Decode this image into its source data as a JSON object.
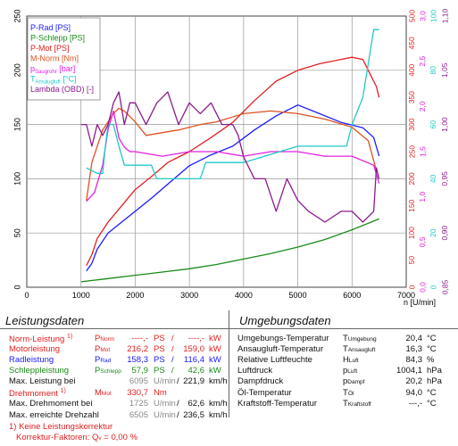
{
  "chart_data": {
    "type": "line",
    "xlabel": "n [U/min]",
    "xlim": [
      0,
      7000
    ],
    "x_ticks": [
      "0",
      "1000",
      "2000",
      "3000",
      "4000",
      "5000",
      "6000",
      "7000"
    ],
    "left_axis": {
      "ylim": [
        0,
        250
      ],
      "ticks": [
        "0",
        "50",
        "100",
        "150",
        "200",
        "250"
      ]
    },
    "right_axes": [
      {
        "color": "#e02020",
        "ticks": [
          "0",
          "50",
          "100",
          "150",
          "200",
          "250",
          "300",
          "350",
          "400",
          "450",
          "500"
        ]
      },
      {
        "color": "#e020e0",
        "ticks": [
          "0,0",
          "0,5",
          "1,0",
          "1,5",
          "2,0",
          "2,5",
          "3,0"
        ]
      },
      {
        "color": "#20c8c8",
        "ticks": [
          "0",
          "20",
          "40",
          "60",
          "80",
          "100"
        ]
      },
      {
        "color": "#8b1a8b",
        "ticks": [
          "0,85",
          "0,90",
          "0,95",
          "1,00",
          "1,05",
          "1,10"
        ]
      }
    ],
    "legend": [
      {
        "label": "P-Rad [PS]",
        "color": "#1a1aff"
      },
      {
        "label": "P-Schlepp [PS]",
        "color": "#1a8a1a"
      },
      {
        "label": "P-Mot [PS]",
        "color": "#e02020"
      },
      {
        "label": "M-Norm [Nm]",
        "color": "#e05020"
      },
      {
        "label": "p",
        "sub": "Saugrohr",
        "suffix": " [bar]",
        "color": "#e020e0"
      },
      {
        "label": "T",
        "sub": "Ansaugluft",
        "suffix": " [°C]",
        "color": "#20c8c8"
      },
      {
        "label": "Lambda (OBD) [-]",
        "color": "#8b1a8b"
      }
    ],
    "series": [
      {
        "name": "P-Rad [PS]",
        "color": "#1a1aff",
        "axis": "left",
        "x": [
          1100,
          1200,
          1300,
          1500,
          1700,
          2000,
          2300,
          2600,
          3000,
          3400,
          3800,
          4200,
          4600,
          5000,
          5400,
          5800,
          6200,
          6400,
          6500
        ],
        "y": [
          15,
          22,
          35,
          50,
          58,
          70,
          82,
          95,
          112,
          122,
          130,
          145,
          158,
          168,
          160,
          152,
          147,
          138,
          121
        ]
      },
      {
        "name": "P-Schlepp [PS]",
        "color": "#1a8a1a",
        "axis": "left",
        "x": [
          1000,
          1500,
          2000,
          2500,
          3000,
          3500,
          4000,
          4500,
          5000,
          5500,
          6000,
          6500
        ],
        "y": [
          5,
          8,
          11,
          14,
          17,
          21,
          26,
          31,
          37,
          44,
          53,
          63
        ]
      },
      {
        "name": "P-Mot [PS]",
        "color": "#e02020",
        "axis": "left",
        "x": [
          1100,
          1200,
          1300,
          1500,
          1700,
          2000,
          2300,
          2600,
          3000,
          3400,
          3800,
          4200,
          4600,
          5000,
          5400,
          5800,
          6000,
          6200,
          6350,
          6450,
          6500
        ],
        "y": [
          20,
          30,
          45,
          60,
          72,
          90,
          102,
          115,
          125,
          138,
          152,
          172,
          190,
          200,
          206,
          210,
          212,
          210,
          195,
          185,
          175
        ]
      },
      {
        "name": "M-Norm [Nm]",
        "color": "#e05020",
        "axis": "right_nm",
        "x": [
          1100,
          1200,
          1400,
          1600,
          1700,
          1800,
          2000,
          2200,
          2500,
          2800,
          3200,
          3500,
          4000,
          4500,
          5000,
          5500,
          6000,
          6300,
          6450
        ],
        "y": [
          160,
          230,
          290,
          320,
          330,
          325,
          305,
          280,
          285,
          290,
          300,
          305,
          320,
          325,
          320,
          310,
          295,
          270,
          215
        ]
      },
      {
        "name": "p Saugrohr [bar]",
        "color": "#e020e0",
        "axis": "right_bar",
        "x": [
          1100,
          1250,
          1400,
          1500,
          1600,
          1700,
          1800,
          1900,
          2000,
          2500,
          3000,
          3500,
          4000,
          4500,
          5000,
          5500,
          6000,
          6400,
          6500
        ],
        "y": [
          0.95,
          1.05,
          1.35,
          1.75,
          1.95,
          1.65,
          1.55,
          1.5,
          1.5,
          1.45,
          1.5,
          1.5,
          1.45,
          1.5,
          1.5,
          1.45,
          1.45,
          1.35,
          1.15
        ]
      },
      {
        "name": "T Ansaugluft [°C]",
        "color": "#20c8c8",
        "axis": "right_c",
        "x": [
          1100,
          1300,
          1400,
          1450,
          1500,
          1600,
          1700,
          1800,
          2300,
          2400,
          3200,
          3300,
          4000,
          5000,
          5900,
          6000,
          6200,
          6400,
          6500
        ],
        "y": [
          44,
          42,
          42,
          52,
          60,
          60,
          52,
          45,
          45,
          40,
          40,
          46,
          46,
          52,
          52,
          60,
          70,
          95,
          95
        ]
      },
      {
        "name": "Lambda (OBD) [-]",
        "color": "#8b1a8b",
        "axis": "right_lambda",
        "x": [
          1000,
          1100,
          1200,
          1300,
          1400,
          1500,
          1600,
          1700,
          1800,
          1900,
          2000,
          2200,
          2400,
          2600,
          2800,
          3000,
          3200,
          3400,
          3600,
          3800,
          3900,
          4000,
          4200,
          4400,
          4600,
          4800,
          5000,
          5200,
          5500,
          5800,
          6000,
          6200,
          6400,
          6450,
          6500
        ],
        "y": [
          1.0,
          1.0,
          0.98,
          1.0,
          0.99,
          1.0,
          1.02,
          1.03,
          1.0,
          1.02,
          1.02,
          1.0,
          1.02,
          1.03,
          1.0,
          1.02,
          1.01,
          1.02,
          1.0,
          1.0,
          0.99,
          0.97,
          0.95,
          0.95,
          0.92,
          0.95,
          0.93,
          0.92,
          0.91,
          0.92,
          0.92,
          0.91,
          0.92,
          0.96,
          0.95
        ]
      }
    ]
  },
  "leistung": {
    "title": "Leistungsdaten",
    "norm_leistung": {
      "label": "Norm-Leistung",
      "note": "1)",
      "sym": "P",
      "sub": "Norm",
      "val1": "----,-",
      "u1": "PS",
      "slash": "/",
      "val2": "----,-",
      "u2": "kW"
    },
    "motorleistung": {
      "label": "Motorleistung",
      "sym": "P",
      "sub": "Mot",
      "val1": "216,2",
      "u1": "PS",
      "slash": "/",
      "val2": "159,0",
      "u2": "kW"
    },
    "radleistung": {
      "label": "Radleistung",
      "sym": "P",
      "sub": "Rad",
      "val1": "158,3",
      "u1": "PS",
      "slash": "/",
      "val2": "116,4",
      "u2": "kW"
    },
    "schleppleistung": {
      "label": "Schleppleistung",
      "sym": "P",
      "sub": "Schlepp",
      "val1": "57,9",
      "u1": "PS",
      "slash": "/",
      "val2": "42,6",
      "u2": "kW"
    },
    "max_leistung_bei": {
      "label": "Max. Leistung bei",
      "rpm": "6095",
      "rpm_unit": "U/min",
      "slash": "/",
      "speed": "221,9",
      "speed_unit": "km/h"
    },
    "drehmoment": {
      "label": "Drehmoment",
      "note": "1)",
      "sym": "M",
      "sub": "Mot",
      "val": "330,7",
      "unit": "Nm"
    },
    "max_drehmoment_bei": {
      "label": "Max. Drehmoment bei",
      "rpm": "1725",
      "rpm_unit": "U/min",
      "slash": "/",
      "speed": "62,6",
      "speed_unit": "km/h"
    },
    "max_drehzahl": {
      "label": "Max. erreichte Drehzahl",
      "rpm": "6505",
      "rpm_unit": "U/min",
      "slash": "/",
      "speed": "236,5",
      "speed_unit": "km/h"
    },
    "footnote1": "1) Keine Leistungskorrektur",
    "footnote2": "Korrektur-Faktoren: Q",
    "footnote2_sub": "v",
    "footnote2_val": " =  0,00 %"
  },
  "umgebung": {
    "title": "Umgebungsdaten",
    "rows": [
      {
        "label": "Umgebungs-Temperatur",
        "sym": "T",
        "sub": "Umgebung",
        "val": "20,4",
        "unit": "°C"
      },
      {
        "label": "Ansaugluft-Temperatur",
        "sym": "T",
        "sub": "Ansaugluft",
        "val": "16,3",
        "unit": "°C"
      },
      {
        "label": "Relative Luftfeuchte",
        "sym": "H",
        "sub": "Luft",
        "val": "84,3",
        "unit": "%"
      },
      {
        "label": "Luftdruck",
        "sym": "p",
        "sub": "Luft",
        "val": "1004,1",
        "unit": "hPa"
      },
      {
        "label": "Dampfdruck",
        "sym": "p",
        "sub": "Dampf",
        "val": "20,2",
        "unit": "hPa"
      },
      {
        "label": "Öl-Temperatur",
        "sym": "T",
        "sub": "Öl",
        "val": "94,0",
        "unit": "°C"
      },
      {
        "label": "Kraftstoff-Temperatur",
        "sym": "T",
        "sub": "Kraftstoff",
        "val": "---,-",
        "unit": "°C"
      }
    ]
  }
}
